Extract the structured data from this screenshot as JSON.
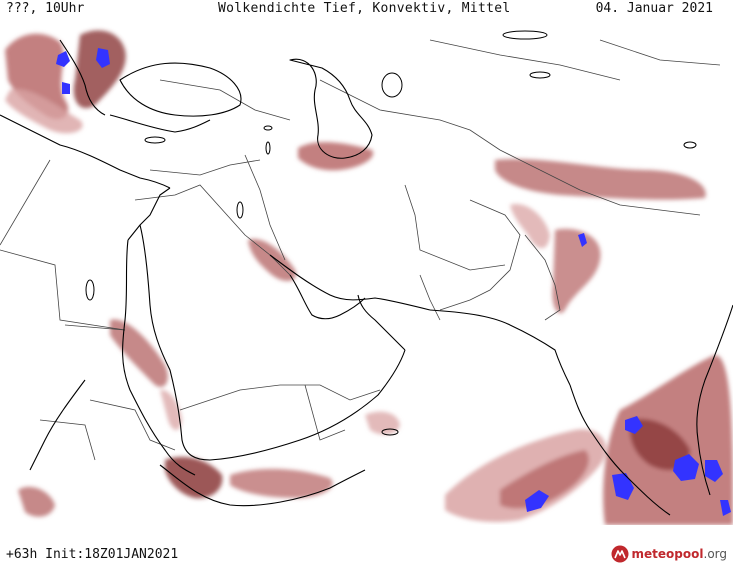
{
  "header": {
    "left_label": "???, 10Uhr",
    "title": "Wolkendichte  Tief, Konvektiv, Mittel",
    "date": "04. Januar 2021"
  },
  "footer": {
    "init_label": "+63h Init:18Z01JAN2021"
  },
  "logo": {
    "name": "meteo",
    "name_accent": "pool",
    "suffix": ".org"
  },
  "legend_colors": {
    "coastline": "#000000",
    "border": "#444444",
    "cloud_light": "#d9a3a3",
    "cloud_medium": "#b86a6a",
    "cloud_dense": "#8b3a3a",
    "cloud_max": "#3333ff"
  }
}
